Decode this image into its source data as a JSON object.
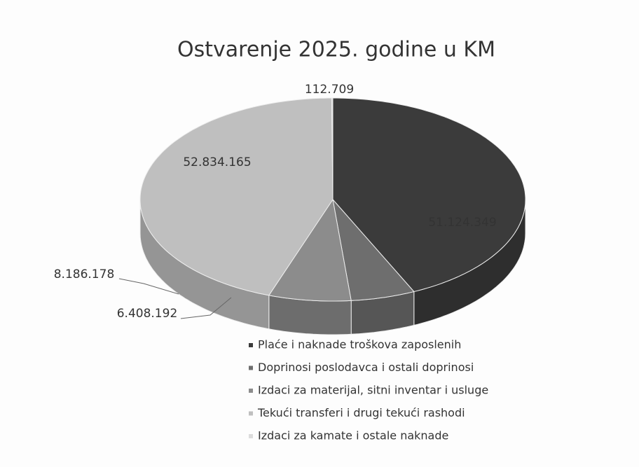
{
  "chart_data": {
    "type": "pie3d",
    "title": "Ostvarenje 2025. godine u KM",
    "categories": [
      "Plaće i naknade troškova zaposlenih",
      "Doprinosi poslodavca i ostali doprinosi",
      "Izdaci za materijal, sitni inventar i usluge",
      "Tekući transferi i drugi tekući rashodi",
      "Izdaci za kamate i ostale naknade"
    ],
    "values": [
      51124349,
      6408192,
      8186178,
      52834165,
      112709
    ],
    "value_labels": [
      "51.124.349",
      "6.408.192",
      "8.186.178",
      "52.834.165",
      "112.709"
    ],
    "colors": [
      "#3b3b3b",
      "#6e6e6e",
      "#8c8c8c",
      "#bfbfbf",
      "#dcdcdc"
    ]
  }
}
